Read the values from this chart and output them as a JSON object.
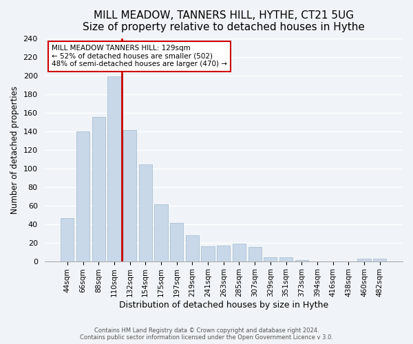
{
  "title": "MILL MEADOW, TANNERS HILL, HYTHE, CT21 5UG",
  "subtitle": "Size of property relative to detached houses in Hythe",
  "xlabel": "Distribution of detached houses by size in Hythe",
  "ylabel": "Number of detached properties",
  "bar_color": "#c8d8e8",
  "bar_edgecolor": "#a0b8cc",
  "bin_labels": [
    "44sqm",
    "66sqm",
    "88sqm",
    "110sqm",
    "132sqm",
    "154sqm",
    "175sqm",
    "197sqm",
    "219sqm",
    "241sqm",
    "263sqm",
    "285sqm",
    "307sqm",
    "329sqm",
    "351sqm",
    "373sqm",
    "394sqm",
    "416sqm",
    "438sqm",
    "460sqm",
    "482sqm"
  ],
  "bar_heights": [
    46,
    140,
    155,
    199,
    141,
    104,
    61,
    41,
    28,
    16,
    17,
    19,
    15,
    4,
    4,
    1,
    0,
    0,
    0,
    3,
    3
  ],
  "ylim": [
    0,
    240
  ],
  "yticks": [
    0,
    20,
    40,
    60,
    80,
    100,
    120,
    140,
    160,
    180,
    200,
    220,
    240
  ],
  "vline_color": "#cc0000",
  "annotation_title": "MILL MEADOW TANNERS HILL: 129sqm",
  "annotation_line1": "← 52% of detached houses are smaller (502)",
  "annotation_line2": "48% of semi-detached houses are larger (470) →",
  "annotation_box_color": "#ffffff",
  "annotation_box_edgecolor": "#cc0000",
  "footer1": "Contains HM Land Registry data © Crown copyright and database right 2024.",
  "footer2": "Contains public sector information licensed under the Open Government Licence v 3.0.",
  "background_color": "#f0f4f8",
  "plot_background": "#f0f4f8"
}
